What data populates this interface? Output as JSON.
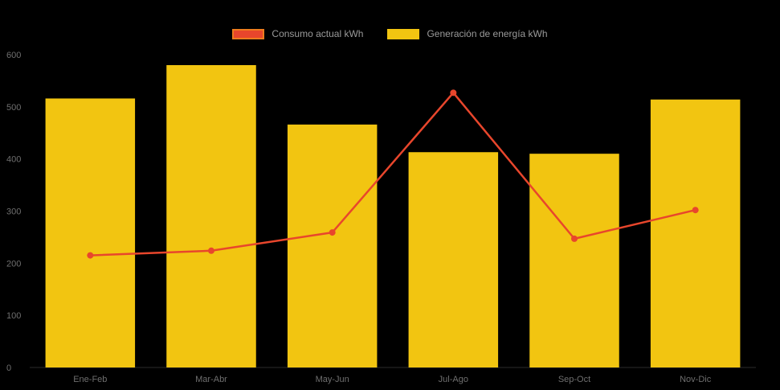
{
  "chart_data": {
    "type": "bar",
    "subtype": "bar-and-line-combo",
    "categories": [
      "Ene-Feb",
      "Mar-Abr",
      "May-Jun",
      "Jul-Ago",
      "Sep-Oct",
      "Nov-Dic"
    ],
    "series": [
      {
        "name": "Consumo actual kWh",
        "type": "line",
        "color": "#E8462C",
        "values": [
          215,
          224,
          259,
          527,
          247,
          302
        ]
      },
      {
        "name": "Generación de energía kWh",
        "type": "bar",
        "color": "#F2C511",
        "values": [
          516,
          580,
          466,
          413,
          410,
          514
        ]
      }
    ],
    "title": "",
    "xlabel": "",
    "ylabel": "",
    "ylim": [
      0,
      600
    ],
    "yticks": [
      0,
      100,
      200,
      300,
      400,
      500,
      600
    ],
    "grid": false,
    "legend_position": "top",
    "background": "#000000",
    "tick_color": "#6F6F6F",
    "legend_text_color": "#9A9A9A",
    "legend_swatch_border": "#EE7C1E",
    "axis_line_color": "#2B2B2B"
  }
}
